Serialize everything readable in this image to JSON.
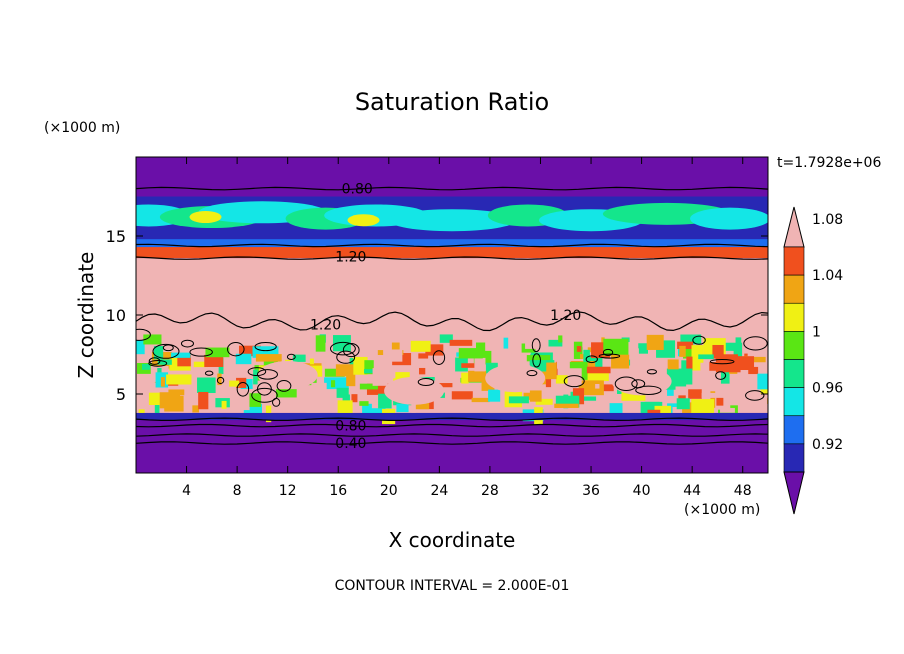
{
  "chart_data": {
    "type": "heatmap",
    "title": "Saturation Ratio",
    "xlabel": "X coordinate",
    "ylabel": "Z coordinate",
    "x_unit": "(×1000 m)",
    "y_unit": "(×1000 m)",
    "time_label": "t=1.7928e+06",
    "footer": "CONTOUR INTERVAL = 2.000E-01",
    "xlim": [
      0,
      50
    ],
    "ylim": [
      0,
      20
    ],
    "x_ticks": [
      4,
      8,
      12,
      16,
      20,
      24,
      28,
      32,
      36,
      40,
      44,
      48
    ],
    "y_ticks": [
      5,
      10,
      15
    ],
    "colorbar": {
      "levels": [
        0.92,
        0.96,
        1,
        1.04,
        1.08
      ],
      "level_labels": [
        "0.92",
        "0.96",
        "1",
        "1.04",
        "1.08"
      ],
      "colors": [
        "#6a0fa8",
        "#2828b4",
        "#1e6ef0",
        "#14e6e6",
        "#14e68c",
        "#5ae614",
        "#f0f014",
        "#f0a514",
        "#f0501e",
        "#f0b4b4"
      ]
    },
    "contour_labels": [
      {
        "text": "0.80",
        "x": 17.5,
        "z": 18.0
      },
      {
        "text": "1.20",
        "x": 17.0,
        "z": 13.7
      },
      {
        "text": "1.20",
        "x": 15.0,
        "z": 9.4
      },
      {
        "text": "1.20",
        "x": 34.0,
        "z": 10.0
      },
      {
        "text": "0.80",
        "x": 17.0,
        "z": 3.0
      },
      {
        "text": "0.40",
        "x": 17.0,
        "z": 1.9
      }
    ]
  }
}
